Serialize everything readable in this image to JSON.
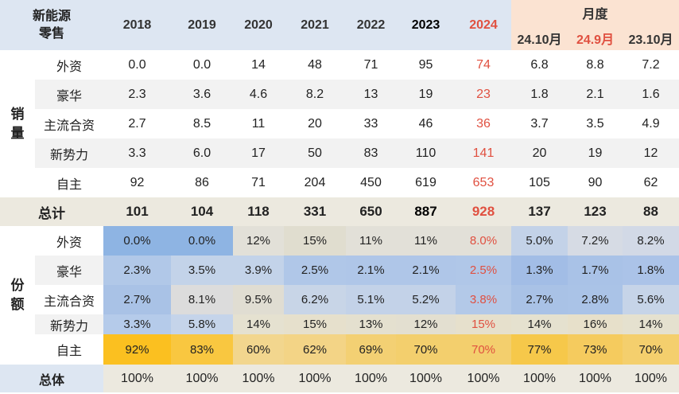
{
  "corner_label_1": "新能源",
  "corner_label_2": "零售",
  "years": [
    "2018",
    "2019",
    "2020",
    "2021",
    "2022",
    "2023",
    "2024"
  ],
  "month_group_label": "月度",
  "months": [
    "24.10月",
    "24.9月",
    "23.10月"
  ],
  "sales_section_label": "销量",
  "share_section_label": "份额",
  "sales_rows": [
    {
      "label": "外资",
      "values": [
        "0.0",
        "0.0",
        "14",
        "48",
        "71",
        "95",
        "74",
        "6.8",
        "8.8",
        "7.2"
      ]
    },
    {
      "label": "豪华",
      "values": [
        "2.3",
        "3.6",
        "4.6",
        "8.2",
        "13",
        "19",
        "23",
        "1.8",
        "2.1",
        "1.6"
      ]
    },
    {
      "label": "主流合资",
      "values": [
        "2.7",
        "8.5",
        "11",
        "20",
        "33",
        "46",
        "36",
        "3.7",
        "3.5",
        "4.9"
      ]
    },
    {
      "label": "新势力",
      "values": [
        "3.3",
        "6.0",
        "17",
        "50",
        "83",
        "110",
        "141",
        "20",
        "19",
        "12"
      ]
    },
    {
      "label": "自主",
      "values": [
        "92",
        "86",
        "71",
        "204",
        "450",
        "619",
        "653",
        "105",
        "90",
        "62"
      ]
    }
  ],
  "total_row": {
    "label": "总计",
    "values": [
      "101",
      "104",
      "118",
      "331",
      "650",
      "887",
      "928",
      "137",
      "123",
      "88"
    ]
  },
  "share_rows": [
    {
      "label": "外资",
      "values": [
        "0.0%",
        "0.0%",
        "12%",
        "15%",
        "11%",
        "11%",
        "8.0%",
        "5.0%",
        "7.2%",
        "8.2%"
      ],
      "colors": [
        "#8eb4e3",
        "#8eb4e3",
        "#e2e0d8",
        "#e0ddcf",
        "#e2e0d8",
        "#e2e0d8",
        "#e2e0d8",
        "#c3d2e8",
        "#d6dbe4",
        "#d2d9e6"
      ]
    },
    {
      "label": "豪华",
      "values": [
        "2.3%",
        "3.5%",
        "3.9%",
        "2.5%",
        "2.1%",
        "2.1%",
        "2.5%",
        "1.3%",
        "1.7%",
        "1.8%"
      ],
      "colors": [
        "#b1c8e8",
        "#c3d3e9",
        "#c3d3e9",
        "#b0c7e8",
        "#afc6e8",
        "#afc6e8",
        "#b0c7e8",
        "#a2bde6",
        "#a9c2e7",
        "#abc3e8"
      ]
    },
    {
      "label": "主流合资",
      "values": [
        "2.7%",
        "8.1%",
        "9.5%",
        "6.2%",
        "5.1%",
        "5.2%",
        "3.8%",
        "2.7%",
        "2.8%",
        "5.6%"
      ],
      "colors": [
        "#a9c2e6",
        "#dcdcdc",
        "#e0ddd2",
        "#c8d5e7",
        "#c3d2e8",
        "#c3d2e8",
        "#b3c9e8",
        "#a9c2e6",
        "#aac3e7",
        "#c6d4e8"
      ]
    },
    {
      "label": "新势力",
      "values": [
        "3.3%",
        "5.8%",
        "14%",
        "15%",
        "13%",
        "12%",
        "15%",
        "14%",
        "16%",
        "14%"
      ],
      "colors": [
        "#b5cbea",
        "#c5d4ea",
        "#e5e1d0",
        "#e6e0cc",
        "#e4e0cf",
        "#e3dfd0",
        "#e6e0cc",
        "#e5e1cf",
        "#e7e0ca",
        "#e5e1cf"
      ]
    },
    {
      "label": "自主",
      "values": [
        "92%",
        "83%",
        "60%",
        "62%",
        "69%",
        "70%",
        "70%",
        "77%",
        "73%",
        "70%"
      ],
      "colors": [
        "#fbc020",
        "#f9c740",
        "#f2d68e",
        "#f3d486",
        "#f3d073",
        "#f3cf6d",
        "#f3cf6d",
        "#f6c84a",
        "#f5cb5e",
        "#f4cf6d"
      ]
    }
  ],
  "grand_row": {
    "label": "总体",
    "values": [
      "100%",
      "100%",
      "100%",
      "100%",
      "100%",
      "100%",
      "100%",
      "100%",
      "100%",
      "100%"
    ]
  },
  "colors": {
    "header_bg": "#dde6f2",
    "month_header_bg": "#fbe3d2",
    "highlight_red": "#e05040",
    "total_bg": "#ece9df"
  }
}
